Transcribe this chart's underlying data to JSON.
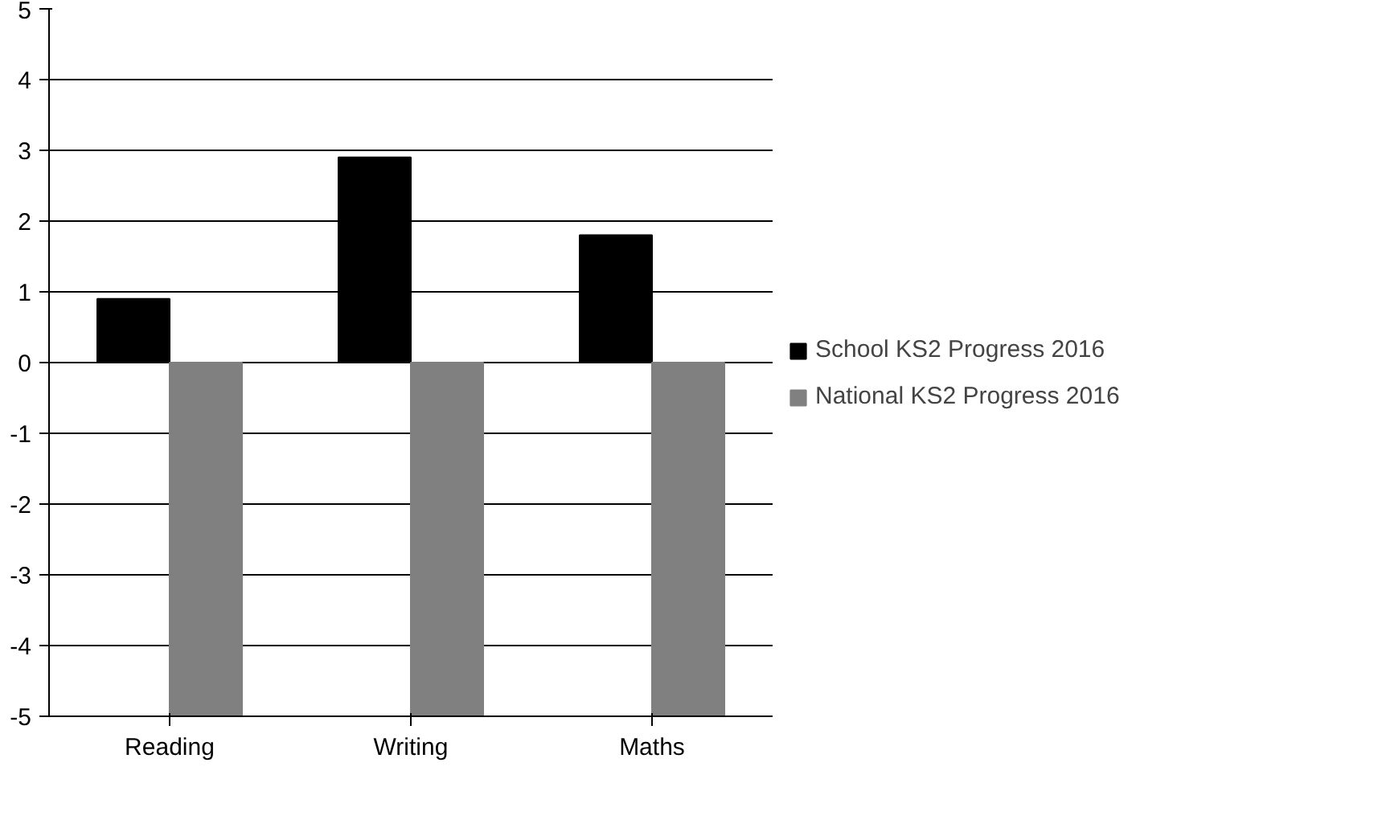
{
  "chart_data": {
    "type": "bar",
    "categories": [
      "Reading",
      "Writing",
      "Maths"
    ],
    "series": [
      {
        "name": "School KS2 Progress 2016",
        "color": "#000000",
        "values": [
          0.9,
          2.9,
          1.8
        ]
      },
      {
        "name": "National KS2 Progress 2016",
        "color": "#808080",
        "values": [
          -5,
          -5,
          -5
        ]
      }
    ],
    "ylim": [
      -5,
      5
    ],
    "yticks": [
      -5,
      -4,
      -3,
      -2,
      -1,
      0,
      1,
      2,
      3,
      4,
      5
    ],
    "grid": "y",
    "legend": "right"
  }
}
